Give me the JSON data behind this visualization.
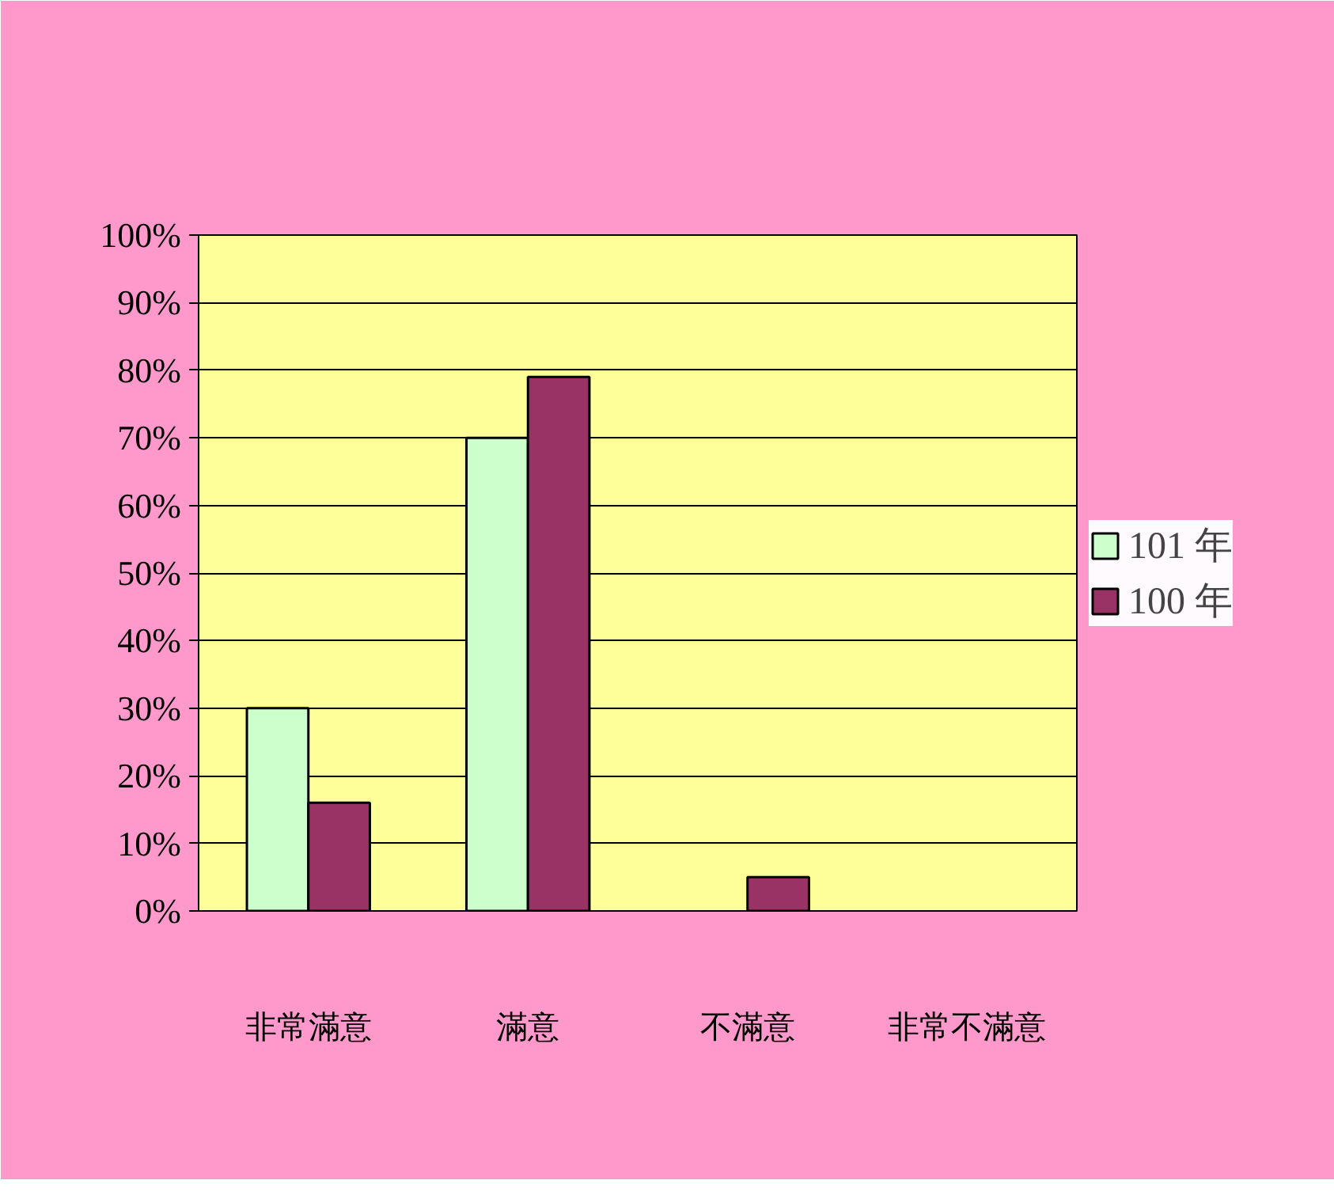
{
  "chart_data": {
    "type": "bar",
    "categories": [
      "非常滿意",
      "滿意",
      "不滿意",
      "非常不滿意"
    ],
    "series": [
      {
        "name": "101 年",
        "color": "#ccffcc",
        "values": [
          30,
          70,
          null,
          null
        ]
      },
      {
        "name": "100 年",
        "color": "#993366",
        "values": [
          16,
          79,
          5,
          null
        ]
      }
    ],
    "ylim": [
      0,
      100
    ],
    "yticks": [
      {
        "value": 0,
        "label": "0%"
      },
      {
        "value": 10,
        "label": "10%"
      },
      {
        "value": 20,
        "label": "20%"
      },
      {
        "value": 30,
        "label": "30%"
      },
      {
        "value": 40,
        "label": "40%"
      },
      {
        "value": 50,
        "label": "50%"
      },
      {
        "value": 60,
        "label": "60%"
      },
      {
        "value": 70,
        "label": "70%"
      },
      {
        "value": 80,
        "label": "80%"
      },
      {
        "value": 90,
        "label": "90%"
      },
      {
        "value": 100,
        "label": "100%"
      }
    ],
    "grid": "y",
    "legend": "right"
  }
}
